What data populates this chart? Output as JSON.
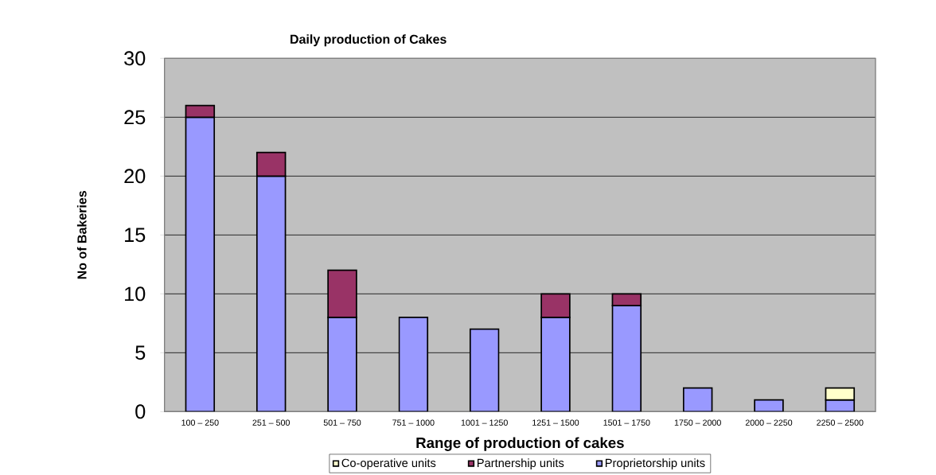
{
  "chart_data": {
    "type": "bar",
    "title": "Daily production of Cakes",
    "xlabel": "Range of production of cakes",
    "ylabel": "No of Bakeries",
    "categories": [
      "100 – 250",
      "251 – 500",
      "501 – 750",
      "751 – 1000",
      "1001 – 1250",
      "1251 – 1500",
      "1501 – 1750",
      "1750 – 2000",
      "2000 – 2250",
      "2250 – 2500"
    ],
    "stacked": true,
    "series": [
      {
        "name": "Proprietorship units",
        "color": "#9999ff",
        "values": [
          25,
          20,
          8,
          8,
          7,
          8,
          9,
          2,
          1,
          1
        ]
      },
      {
        "name": "Partnership units",
        "color": "#993366",
        "values": [
          1,
          2,
          4,
          null,
          null,
          2,
          1,
          null,
          null,
          null
        ]
      },
      {
        "name": "Co-operative units",
        "color": "#ffffcc",
        "values": [
          null,
          null,
          null,
          null,
          null,
          null,
          null,
          null,
          null,
          1
        ]
      }
    ],
    "ylim": [
      0,
      30
    ],
    "yticks": [
      0,
      5,
      10,
      15,
      20,
      25,
      30
    ],
    "grid": "y",
    "legend": "bottom"
  }
}
